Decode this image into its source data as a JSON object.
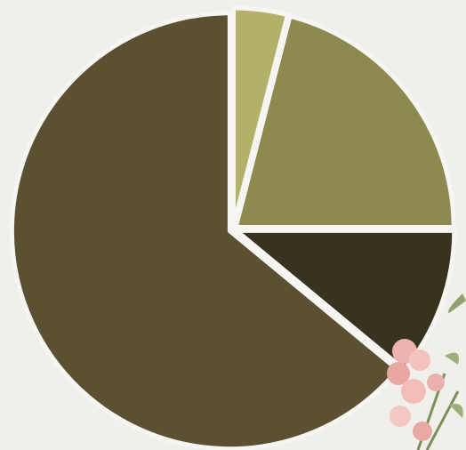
{
  "chart_data": {
    "type": "pie",
    "values": [
      4,
      21,
      11,
      64
    ],
    "colors": [
      "#b3b06a",
      "#8d8a4f",
      "#37331f",
      "#5b5032"
    ],
    "start_angle": 0,
    "direction": "clockwise"
  }
}
